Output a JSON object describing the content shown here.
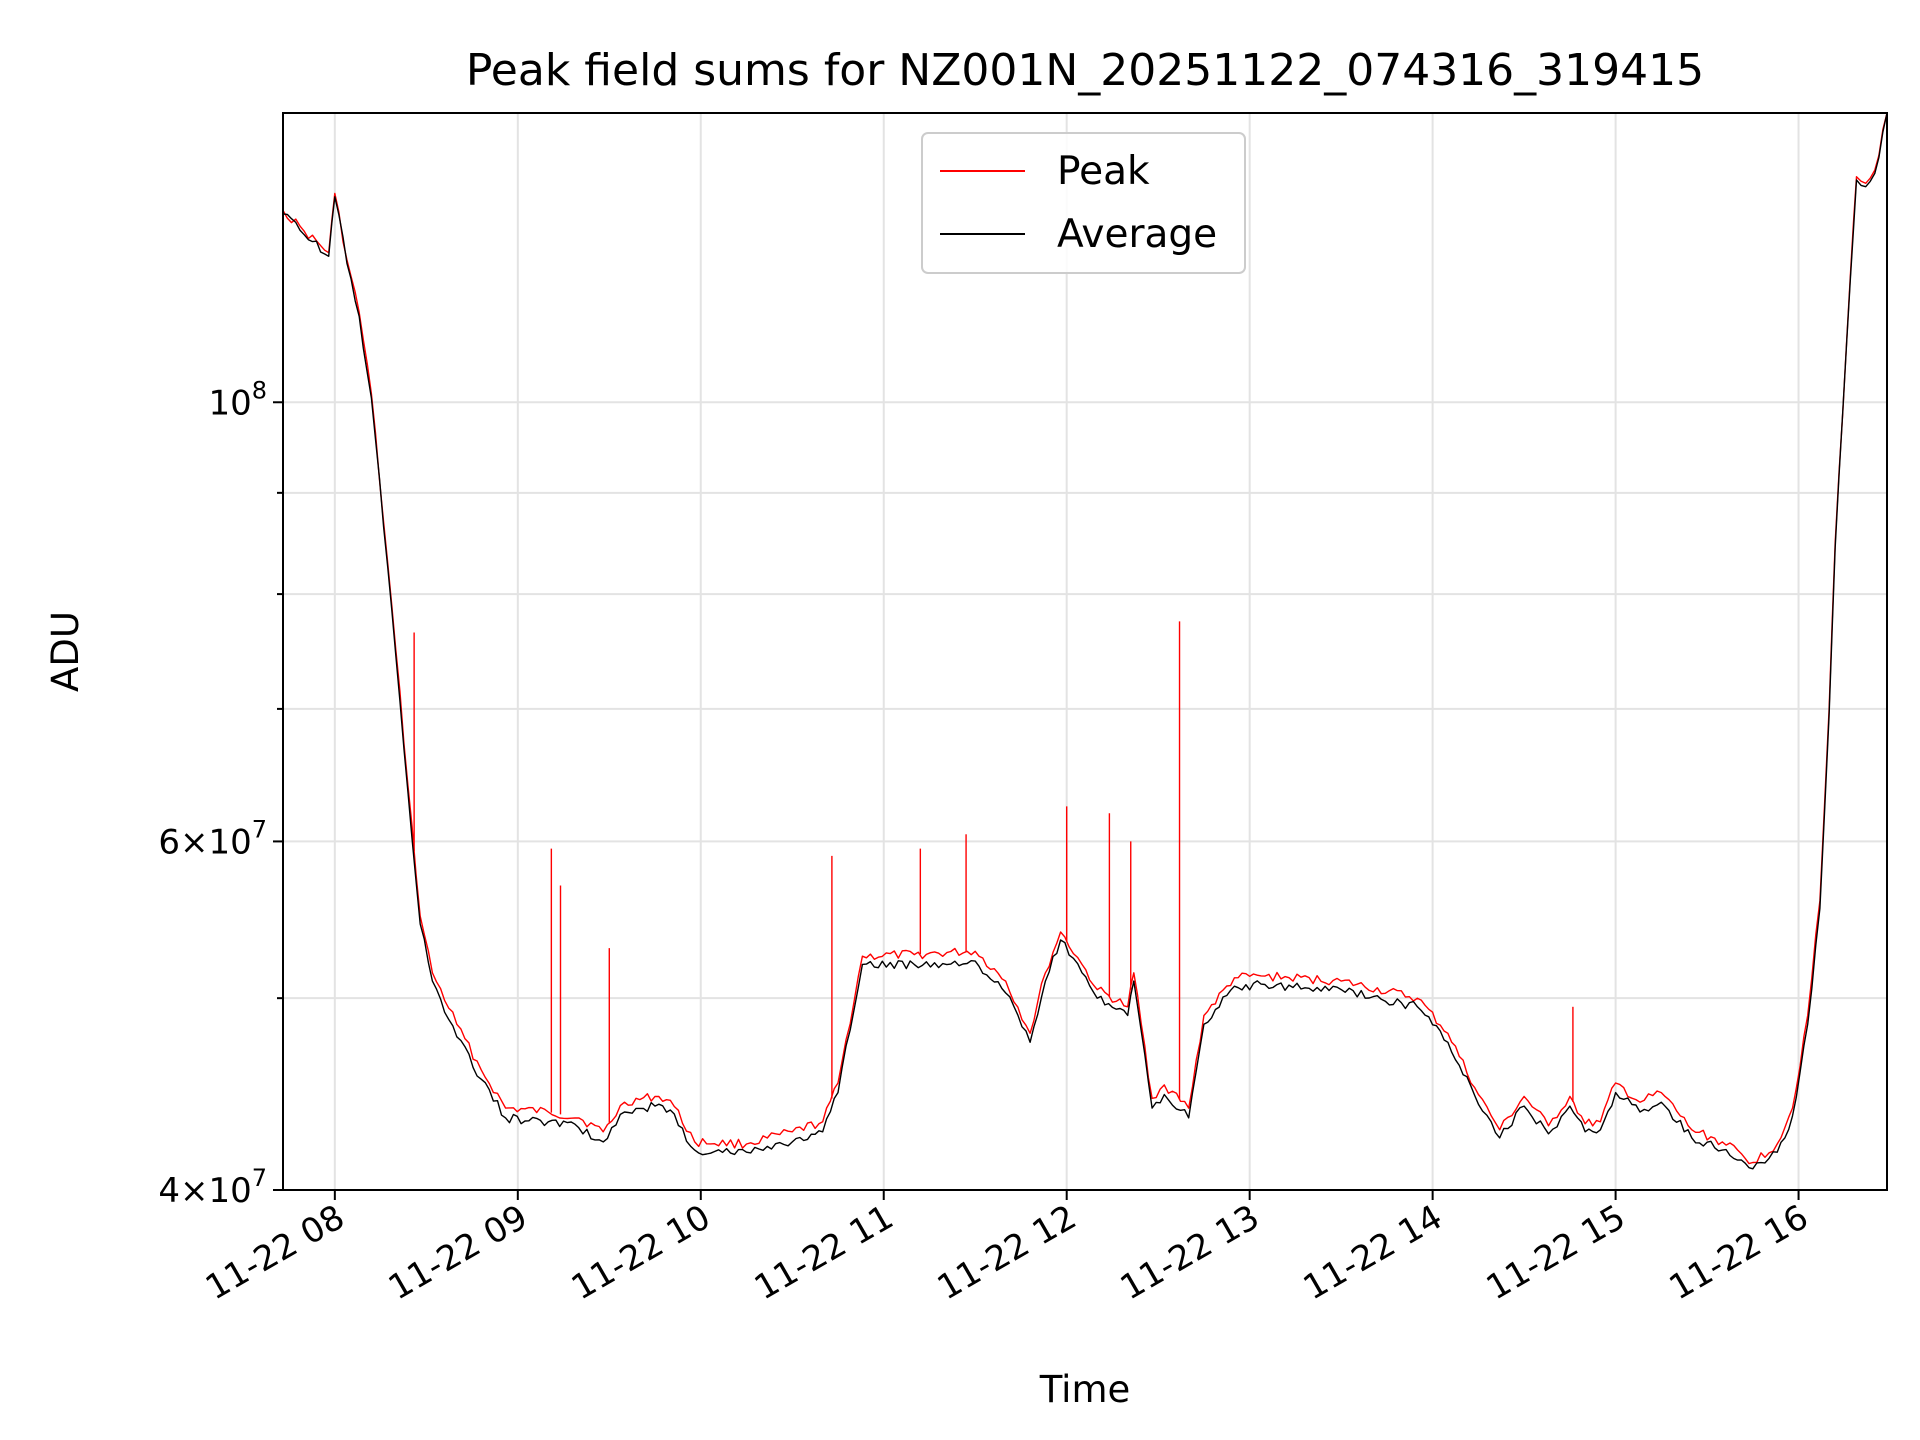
{
  "chart_data": {
    "type": "line",
    "title": "Peak field sums for NZ001N_20251122_074316_319415",
    "xlabel": "Time",
    "ylabel": "ADU",
    "y_scale": "log",
    "ylim": [
      40000000,
      140000000
    ],
    "xlim": [
      "2025-11-22 07:43",
      "2025-11-22 16:29"
    ],
    "x_ticks": [
      "11-22 08",
      "11-22 09",
      "11-22 10",
      "11-22 11",
      "11-22 12",
      "11-22 13",
      "11-22 14",
      "11-22 15",
      "11-22 16"
    ],
    "y_ticks": [
      {
        "value": 40000000,
        "mant": "4",
        "exp": "7"
      },
      {
        "value": 60000000,
        "mant": "6",
        "exp": "7"
      },
      {
        "value": 100000000,
        "mant": "10",
        "exp": "8"
      }
    ],
    "y_minor_ticks": [
      50000000,
      70000000,
      80000000,
      90000000
    ],
    "grid": true,
    "legend_position": "upper center",
    "series": [
      {
        "name": "Peak",
        "color": "#ff0000",
        "x": [
          "2025-11-22 07:43",
          "2025-11-22 07:50",
          "2025-11-22 07:58",
          "2025-11-22 08:00",
          "2025-11-22 08:04",
          "2025-11-22 08:08",
          "2025-11-22 08:12",
          "2025-11-22 08:16",
          "2025-11-22 08:20",
          "2025-11-22 08:24",
          "2025-11-22 08:28",
          "2025-11-22 08:32",
          "2025-11-22 08:40",
          "2025-11-22 08:48",
          "2025-11-22 08:56",
          "2025-11-22 09:10",
          "2025-11-22 09:20",
          "2025-11-22 09:28",
          "2025-11-22 09:35",
          "2025-11-22 09:45",
          "2025-11-22 09:50",
          "2025-11-22 09:58",
          "2025-11-22 10:15",
          "2025-11-22 10:30",
          "2025-11-22 10:40",
          "2025-11-22 10:45",
          "2025-11-22 10:53",
          "2025-11-22 11:10",
          "2025-11-22 11:30",
          "2025-11-22 11:40",
          "2025-11-22 11:48",
          "2025-11-22 11:53",
          "2025-11-22 11:58",
          "2025-11-22 12:05",
          "2025-11-22 12:10",
          "2025-11-22 12:20",
          "2025-11-22 12:22",
          "2025-11-22 12:28",
          "2025-11-22 12:32",
          "2025-11-22 12:40",
          "2025-11-22 12:45",
          "2025-11-22 12:55",
          "2025-11-22 13:05",
          "2025-11-22 13:30",
          "2025-11-22 13:55",
          "2025-11-22 14:05",
          "2025-11-22 14:15",
          "2025-11-22 14:22",
          "2025-11-22 14:30",
          "2025-11-22 14:38",
          "2025-11-22 14:45",
          "2025-11-22 14:50",
          "2025-11-22 14:55",
          "2025-11-22 15:00",
          "2025-11-22 15:08",
          "2025-11-22 15:15",
          "2025-11-22 15:25",
          "2025-11-22 15:35",
          "2025-11-22 15:45",
          "2025-11-22 15:53",
          "2025-11-22 15:58",
          "2025-11-22 16:03",
          "2025-11-22 16:07",
          "2025-11-22 16:10",
          "2025-11-22 16:12",
          "2025-11-22 16:17",
          "2025-11-22 16:19",
          "2025-11-22 16:22",
          "2025-11-22 16:25",
          "2025-11-22 16:29"
        ],
        "y": [
          125000000,
          122000000,
          119000000,
          127500000,
          118000000,
          111000000,
          101000000,
          87000000,
          75000000,
          64000000,
          55000000,
          51500000,
          48500000,
          46000000,
          44000000,
          43800000,
          43500000,
          42800000,
          44300000,
          44600000,
          44400000,
          42300000,
          42200000,
          42800000,
          43300000,
          45300000,
          52500000,
          52600000,
          52800000,
          51000000,
          48000000,
          51500000,
          54000000,
          52000000,
          50500000,
          49500000,
          51500000,
          44500000,
          45200000,
          44000000,
          49000000,
          51200000,
          51300000,
          51000000,
          50000000,
          48000000,
          44700000,
          42900000,
          44600000,
          43100000,
          44600000,
          43200000,
          43300000,
          45300000,
          44300000,
          44800000,
          42900000,
          42300000,
          41300000,
          42200000,
          44000000,
          49000000,
          56000000,
          70000000,
          85000000,
          116000000,
          130000000,
          129000000,
          131000000,
          140000000
        ],
        "spikes": [
          {
            "x": "2025-11-22 08:26",
            "y": 76500000
          },
          {
            "x": "2025-11-22 09:11",
            "y": 59500000
          },
          {
            "x": "2025-11-22 09:14",
            "y": 57000000
          },
          {
            "x": "2025-11-22 09:30",
            "y": 53000000
          },
          {
            "x": "2025-11-22 10:43",
            "y": 59000000
          },
          {
            "x": "2025-11-22 11:12",
            "y": 59500000
          },
          {
            "x": "2025-11-22 11:27",
            "y": 60500000
          },
          {
            "x": "2025-11-22 12:00",
            "y": 62500000
          },
          {
            "x": "2025-11-22 12:14",
            "y": 62000000
          },
          {
            "x": "2025-11-22 12:21",
            "y": 60000000
          },
          {
            "x": "2025-11-22 12:37",
            "y": 77500000
          },
          {
            "x": "2025-11-22 14:46",
            "y": 49500000
          }
        ]
      },
      {
        "name": "Average",
        "color": "#000000",
        "x": [
          "2025-11-22 07:43",
          "2025-11-22 07:50",
          "2025-11-22 07:58",
          "2025-11-22 08:00",
          "2025-11-22 08:04",
          "2025-11-22 08:08",
          "2025-11-22 08:12",
          "2025-11-22 08:16",
          "2025-11-22 08:20",
          "2025-11-22 08:24",
          "2025-11-22 08:28",
          "2025-11-22 08:32",
          "2025-11-22 08:40",
          "2025-11-22 08:48",
          "2025-11-22 08:56",
          "2025-11-22 09:10",
          "2025-11-22 09:20",
          "2025-11-22 09:28",
          "2025-11-22 09:35",
          "2025-11-22 09:45",
          "2025-11-22 09:50",
          "2025-11-22 09:58",
          "2025-11-22 10:15",
          "2025-11-22 10:30",
          "2025-11-22 10:40",
          "2025-11-22 10:45",
          "2025-11-22 10:53",
          "2025-11-22 11:10",
          "2025-11-22 11:30",
          "2025-11-22 11:40",
          "2025-11-22 11:48",
          "2025-11-22 11:53",
          "2025-11-22 11:58",
          "2025-11-22 12:05",
          "2025-11-22 12:10",
          "2025-11-22 12:20",
          "2025-11-22 12:22",
          "2025-11-22 12:28",
          "2025-11-22 12:32",
          "2025-11-22 12:40",
          "2025-11-22 12:45",
          "2025-11-22 12:55",
          "2025-11-22 13:05",
          "2025-11-22 13:30",
          "2025-11-22 13:55",
          "2025-11-22 14:05",
          "2025-11-22 14:15",
          "2025-11-22 14:22",
          "2025-11-22 14:30",
          "2025-11-22 14:38",
          "2025-11-22 14:45",
          "2025-11-22 14:50",
          "2025-11-22 14:55",
          "2025-11-22 15:00",
          "2025-11-22 15:08",
          "2025-11-22 15:15",
          "2025-11-22 15:25",
          "2025-11-22 15:35",
          "2025-11-22 15:45",
          "2025-11-22 15:53",
          "2025-11-22 15:58",
          "2025-11-22 16:03",
          "2025-11-22 16:07",
          "2025-11-22 16:10",
          "2025-11-22 16:12",
          "2025-11-22 16:17",
          "2025-11-22 16:19",
          "2025-11-22 16:22",
          "2025-11-22 16:25",
          "2025-11-22 16:29"
        ],
        "y": [
          124500000,
          121500000,
          118500000,
          127000000,
          117500000,
          110500000,
          100500000,
          86500000,
          74500000,
          63500000,
          54500000,
          51000000,
          47800000,
          45500000,
          43500000,
          43300000,
          43000000,
          42300000,
          43800000,
          44100000,
          43900000,
          41900000,
          41800000,
          42300000,
          42800000,
          44800000,
          52000000,
          52000000,
          52200000,
          50300000,
          47500000,
          51000000,
          53500000,
          51500000,
          50000000,
          49000000,
          51000000,
          44000000,
          44700000,
          43500000,
          48500000,
          50700000,
          50800000,
          50500000,
          49500000,
          47500000,
          44200000,
          42500000,
          44100000,
          42700000,
          44100000,
          42800000,
          42900000,
          44800000,
          43800000,
          44300000,
          42500000,
          41900000,
          41000000,
          41800000,
          43600000,
          48500000,
          55500000,
          69500000,
          84500000,
          115500000,
          129500000,
          128500000,
          130500000,
          140000000
        ]
      }
    ]
  }
}
